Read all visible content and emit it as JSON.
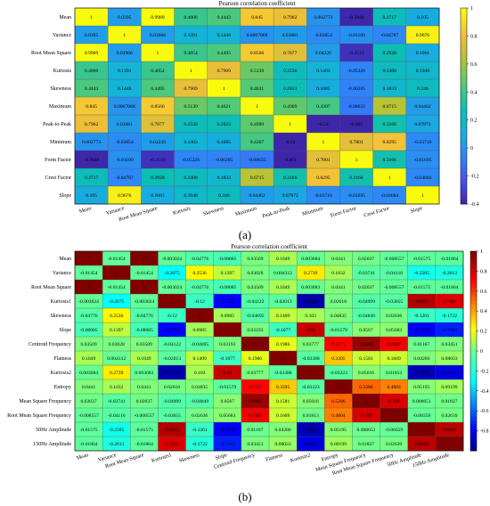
{
  "chart_data": [
    {
      "type": "heatmap",
      "panel_label": "(a)",
      "title": "Pearson correlation coefficient",
      "labels": [
        "Mean",
        "Variance",
        "Root Mean Square",
        "Kurtosis",
        "Skewness",
        "Maximum",
        "Peak-to-Peak",
        "Minimum",
        "Form Factor",
        "Crest Factor",
        "Slope"
      ],
      "colorbar": {
        "min": -0.4,
        "max": 1,
        "ticks": [
          "1",
          "0.8",
          "0.6",
          "0.4",
          "0.2",
          "0",
          "-0.2",
          "-0.4"
        ]
      },
      "colorscale": "parula",
      "matrix": [
        [
          "1",
          "0.0395",
          "0.9989",
          "0.4006",
          "0.4443",
          "0.845",
          "0.7962",
          "0.002773",
          "-0.3949",
          "0.2717",
          "0.105"
        ],
        [
          "0.0395",
          "1",
          "0.03966",
          "0.1391",
          "0.1448",
          "0.0007068",
          "0.03681",
          "-0.03854",
          "-0.01109",
          "-0.04787",
          "0.9676"
        ],
        [
          "0.9989",
          "0.03966",
          "1",
          "0.4054",
          "0.4495",
          "0.8566",
          "0.7677",
          "0.04226",
          "-0.3519",
          "0.2928",
          "0.1061"
        ],
        [
          "0.4006",
          "0.1391",
          "0.4054",
          "1",
          "0.7909",
          "0.5139",
          "0.2536",
          "0.1403",
          "-0.05326",
          "0.2408",
          "0.1948"
        ],
        [
          "0.4443",
          "0.1448",
          "0.4495",
          "0.7909",
          "1",
          "0.4621",
          "0.2823",
          "0.1085",
          "-0.06205",
          "0.1833",
          "0.246"
        ],
        [
          "0.845",
          "0.0007068",
          "0.8566",
          "0.5139",
          "0.4621",
          "1",
          "0.4909",
          "0.4307",
          "-0.08635",
          "0.6715",
          "0.04462"
        ],
        [
          "0.7962",
          "0.03681",
          "0.7677",
          "0.2536",
          "0.2823",
          "0.4909",
          "1",
          "-0.54",
          "-0.861",
          "0.3166",
          "0.07872"
        ],
        [
          "0.002773",
          "-0.03854",
          "0.04226",
          "0.1403",
          "0.1085",
          "0.4307",
          "-0.54",
          "1",
          "0.7801",
          "0.8295",
          "-0.03716"
        ],
        [
          "-0.3949",
          "-0.01109",
          "-0.3519",
          "-0.05326",
          "-0.06205",
          "-0.08635",
          "-0.861",
          "0.7801",
          "1",
          "0.3166",
          "-0.01695"
        ],
        [
          "0.2717",
          "-0.04787",
          "0.2928",
          "0.2408",
          "0.1833",
          "0.6715",
          "0.3166",
          "0.8295",
          "0.3166",
          "1",
          "-0.04684"
        ],
        [
          "0.105",
          "0.9676",
          "0.1061",
          "0.1948",
          "0.246",
          "0.04462",
          "0.07872",
          "-0.03716",
          "-0.01695",
          "-0.04684",
          "1"
        ]
      ]
    },
    {
      "type": "heatmap",
      "panel_label": "(b)",
      "title": "Pearson correlation coefficient",
      "labels": [
        "Mean",
        "Variance",
        "Root Mean Square",
        "Kurtosis1",
        "Skewness",
        "Slope",
        "Centroid Frequency",
        "Flatness",
        "Kurtosis2",
        "Entropy",
        "Mean Square Frequency",
        "Root Mean Square Frequency",
        "50Hz Amplitude",
        "150Hz Amplitude"
      ],
      "colorbar": {
        "min": -1,
        "max": 1,
        "ticks": [
          "1",
          "0.8",
          "0.6",
          "0.4",
          "0.2",
          "0",
          "-0.2",
          "-0.4",
          "-0.6",
          "-0.8"
        ]
      },
      "colorscale": "jet",
      "matrix": [
        [
          "1",
          "-0.01454",
          "1",
          "-0.003024",
          "-0.04776",
          "-0.08085",
          "0.03509",
          "0.1049",
          "0.003684",
          "0.0441",
          "0.02037",
          "-0.008557",
          "-0.01575",
          "-0.01864"
        ],
        [
          "-0.01454",
          "1",
          "-0.01454",
          "-0.2675",
          "0.2536",
          "0.1397",
          "0.03028",
          "0.004312",
          "0.2739",
          "0.1032",
          "-0.03741",
          "-0.04116",
          "-0.2285",
          "-0.2013"
        ],
        [
          "1",
          "-0.01454",
          "1",
          "-0.003024",
          "-0.04776",
          "-0.08085",
          "0.03509",
          "0.1049",
          "0.003683",
          "0.0441",
          "0.02037",
          "-0.008557",
          "-0.01575",
          "-0.01864"
        ],
        [
          "-0.003024",
          "-0.2675",
          "-0.003024",
          "1",
          "-0.12",
          "-0.7755",
          "-0.04122",
          "-0.02013",
          "-0.9186",
          "0.02618",
          "-0.04999",
          "-0.03655",
          "0.8832",
          "0.7923"
        ],
        [
          "-0.04776",
          "0.2536",
          "-0.04776",
          "-0.12",
          "1",
          "0.0985",
          "-0.04695",
          "0.1409",
          "0.103",
          "0.04835",
          "-0.04849",
          "0.02636",
          "-0.1261",
          "-0.1722"
        ],
        [
          "-0.08085",
          "0.1397",
          "-0.08085",
          "-0.7755",
          "0.0985",
          "1",
          "0.03193",
          "-0.1077",
          "0.84",
          "-0.01579",
          "0.0567",
          "0.05683",
          "-0.7978",
          "-0.7183"
        ],
        [
          "0.03509",
          "0.03028",
          "0.03509",
          "-0.04122",
          "-0.04695",
          "0.03193",
          "1",
          "0.1986",
          "0.03777",
          "0.7171",
          "0.9368",
          "0.7487",
          "0.01107",
          "0.03451"
        ],
        [
          "0.1049",
          "0.004312",
          "0.1049",
          "-0.02013",
          "0.1409",
          "-0.1077",
          "0.1986",
          "1",
          "-0.03388",
          "0.3395",
          "0.1581",
          "0.1609",
          "0.04286",
          "0.08033"
        ],
        [
          "0.003684",
          "0.2739",
          "0.003683",
          "-0.9186",
          "0.103",
          "0.84",
          "0.03777",
          "-0.03388",
          "1",
          "-0.03223",
          "0.05016",
          "0.01813",
          "-0.9037",
          "-0.8251"
        ],
        [
          "0.0441",
          "0.1032",
          "0.0441",
          "0.02618",
          "0.04835",
          "-0.01579",
          "0.7171",
          "0.3395",
          "-0.03223",
          "1",
          "0.5286",
          "0.4804",
          "0.05195",
          "0.09199"
        ],
        [
          "0.02037",
          "-0.03741",
          "0.02037",
          "-0.04999",
          "-0.04849",
          "0.0567",
          "0.9368",
          "0.1581",
          "0.05016",
          "0.5286",
          "1",
          "0.799",
          "0.008651",
          "0.01827"
        ],
        [
          "-0.008557",
          "-0.04116",
          "-0.008557",
          "-0.03655",
          "0.02636",
          "0.05683",
          "0.7487",
          "0.1609",
          "0.01813",
          "0.4804",
          "0.799",
          "1",
          "-0.00359",
          "0.02639"
        ],
        [
          "-0.01575",
          "-0.2285",
          "-0.01575",
          "0.8832",
          "-0.1261",
          "-0.7978",
          "0.01107",
          "0.04286",
          "-0.9037",
          "0.05195",
          "0.008651",
          "-0.00359",
          "1",
          "0.8658"
        ],
        [
          "-0.01864",
          "-0.2013",
          "-0.01864",
          "0.7923",
          "-0.1722",
          "-0.7183",
          "0.03451",
          "0.08033",
          "-0.8251",
          "0.09199",
          "0.01827",
          "0.02639",
          "0.8658",
          "1"
        ]
      ]
    }
  ]
}
